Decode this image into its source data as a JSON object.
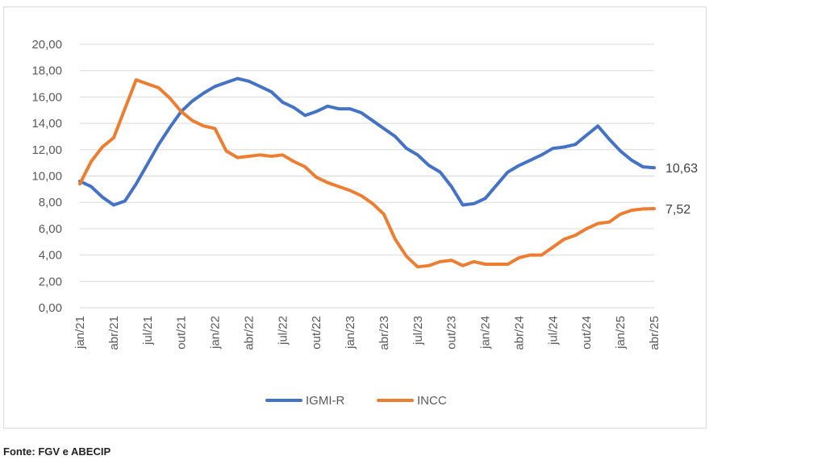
{
  "source": "Fonte: FGV e ABECIP",
  "colors": {
    "IGMI-R": "#4472c4",
    "INCC": "#ed7d31",
    "grid": "#d9d9d9"
  },
  "chart_data": {
    "type": "line",
    "title": "",
    "xlabel": "",
    "ylabel": "",
    "ylim": [
      0,
      20
    ],
    "yticks": [
      "0,00",
      "2,00",
      "4,00",
      "6,00",
      "8,00",
      "10,00",
      "12,00",
      "14,00",
      "16,00",
      "18,00",
      "20,00"
    ],
    "grid": true,
    "legend_position": "bottom",
    "categories": [
      "jan/21",
      "fev/21",
      "mar/21",
      "abr/21",
      "mai/21",
      "jun/21",
      "jul/21",
      "ago/21",
      "set/21",
      "out/21",
      "nov/21",
      "dez/21",
      "jan/22",
      "fev/22",
      "mar/22",
      "abr/22",
      "mai/22",
      "jun/22",
      "jul/22",
      "ago/22",
      "set/22",
      "out/22",
      "nov/22",
      "dez/22",
      "jan/23",
      "fev/23",
      "mar/23",
      "abr/23",
      "mai/23",
      "jun/23",
      "jul/23",
      "ago/23",
      "set/23",
      "out/23",
      "nov/23",
      "dez/23",
      "jan/24",
      "fev/24",
      "mar/24",
      "abr/24",
      "mai/24",
      "jun/24",
      "jul/24",
      "ago/24",
      "set/24",
      "out/24",
      "nov/24",
      "dez/24",
      "jan/25",
      "fev/25",
      "mar/25",
      "abr/25"
    ],
    "shown_tick_labels": [
      "jan/21",
      "abr/21",
      "jul/21",
      "out/21",
      "jan/22",
      "abr/22",
      "jul/22",
      "out/22",
      "jan/23",
      "abr/23",
      "jul/23",
      "out/23",
      "jan/24",
      "abr/24",
      "jul/24",
      "out/24",
      "jan/25",
      "abr/25"
    ],
    "series": [
      {
        "name": "IGMI-R",
        "values": [
          9.6,
          9.2,
          8.4,
          7.8,
          8.1,
          9.4,
          10.9,
          12.4,
          13.7,
          14.9,
          15.7,
          16.3,
          16.8,
          17.1,
          17.4,
          17.2,
          16.8,
          16.4,
          15.6,
          15.2,
          14.6,
          14.9,
          15.3,
          15.1,
          15.1,
          14.8,
          14.2,
          13.6,
          13.0,
          12.1,
          11.6,
          10.8,
          10.3,
          9.2,
          7.8,
          7.9,
          8.3,
          9.3,
          10.3,
          10.8,
          11.2,
          11.6,
          12.1,
          12.2,
          12.4,
          13.1,
          13.8,
          12.8,
          11.9,
          11.2,
          10.7,
          10.63
        ],
        "end_label": "10,63"
      },
      {
        "name": "INCC",
        "values": [
          9.4,
          11.1,
          12.2,
          12.9,
          15.1,
          17.3,
          17.0,
          16.7,
          15.9,
          14.9,
          14.2,
          13.8,
          13.6,
          11.9,
          11.4,
          11.5,
          11.6,
          11.5,
          11.6,
          11.1,
          10.7,
          9.9,
          9.5,
          9.2,
          8.9,
          8.5,
          7.9,
          7.1,
          5.2,
          3.9,
          3.1,
          3.2,
          3.5,
          3.6,
          3.2,
          3.5,
          3.3,
          3.3,
          3.3,
          3.8,
          4.0,
          4.0,
          4.6,
          5.2,
          5.5,
          6.0,
          6.4,
          6.5,
          7.1,
          7.4,
          7.5,
          7.52
        ],
        "end_label": "7,52"
      }
    ]
  }
}
